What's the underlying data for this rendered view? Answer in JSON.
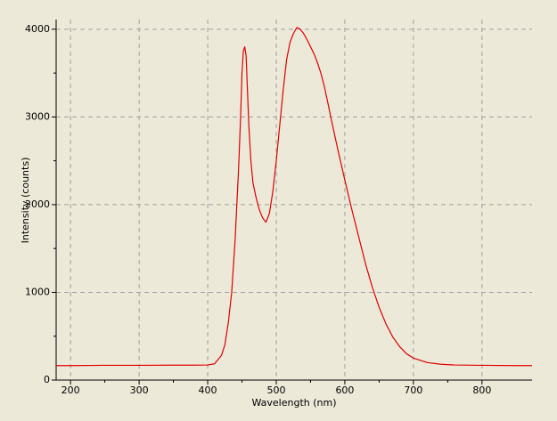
{
  "chart_data": {
    "type": "line",
    "x_label": "Wavelength (nm)",
    "y_label": "Intensity (counts)",
    "xlim": [
      179,
      873
    ],
    "ylim": [
      0,
      4110
    ],
    "xticks": [
      200,
      300,
      400,
      500,
      600,
      700,
      800
    ],
    "yticks": [
      0,
      1000,
      2000,
      3000,
      4000
    ],
    "grid": true,
    "series": [
      {
        "color": "#e00000",
        "x": [
          179,
          200,
          250,
          300,
          350,
          380,
          400,
          410,
          420,
          425,
          430,
          435,
          440,
          445,
          448,
          450,
          452,
          454,
          456,
          458,
          460,
          463,
          466,
          470,
          475,
          480,
          485,
          490,
          495,
          500,
          505,
          510,
          515,
          520,
          525,
          530,
          535,
          540,
          545,
          550,
          555,
          560,
          565,
          570,
          575,
          580,
          585,
          590,
          595,
          600,
          610,
          620,
          630,
          640,
          650,
          660,
          670,
          680,
          690,
          700,
          720,
          740,
          760,
          800,
          850,
          873
        ],
        "values": [
          165,
          165,
          168,
          168,
          170,
          170,
          172,
          185,
          280,
          400,
          650,
          1000,
          1600,
          2400,
          3000,
          3500,
          3750,
          3800,
          3700,
          3300,
          2900,
          2500,
          2250,
          2100,
          1950,
          1850,
          1800,
          1900,
          2150,
          2500,
          2900,
          3300,
          3650,
          3850,
          3950,
          4020,
          4000,
          3950,
          3880,
          3800,
          3720,
          3620,
          3500,
          3350,
          3170,
          2980,
          2800,
          2620,
          2450,
          2280,
          1950,
          1640,
          1330,
          1060,
          830,
          640,
          490,
          380,
          300,
          250,
          200,
          180,
          172,
          168,
          165,
          165
        ]
      }
    ]
  }
}
